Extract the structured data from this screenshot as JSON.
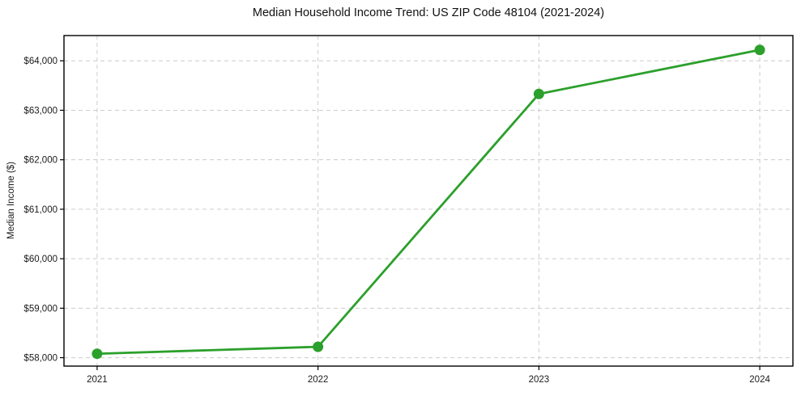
{
  "figure": {
    "background": "#ffffff",
    "text_color": "#1a1a1a"
  },
  "chart_data": {
    "type": "line",
    "title": "Median Household Income Trend: US ZIP Code 48104 (2021-2024)",
    "xlabel": "",
    "ylabel": "Median Income ($)",
    "x": [
      2021,
      2022,
      2023,
      2024
    ],
    "x_tick_labels": [
      "2021",
      "2022",
      "2023",
      "2024"
    ],
    "series": [
      {
        "name": "median-household-income",
        "values": [
          58080,
          58220,
          63330,
          64220
        ],
        "color": "#2ca02c",
        "marker": "circle",
        "marker_radius": 6.5,
        "line_width": 2.8
      }
    ],
    "yticks": [
      58000,
      59000,
      60000,
      61000,
      62000,
      63000,
      64000
    ],
    "ytick_labels": [
      "$58,000",
      "$59,000",
      "$60,000",
      "$61,000",
      "$62,000",
      "$63,000",
      "$64,000"
    ],
    "ylim": [
      57830,
      64510
    ],
    "xlim": [
      2020.85,
      2024.15
    ],
    "grid": true,
    "grid_color": "#cccccc",
    "grid_dash": "5 4",
    "axis_color": "#000000",
    "tick_length": 5,
    "legend_position": "none"
  }
}
